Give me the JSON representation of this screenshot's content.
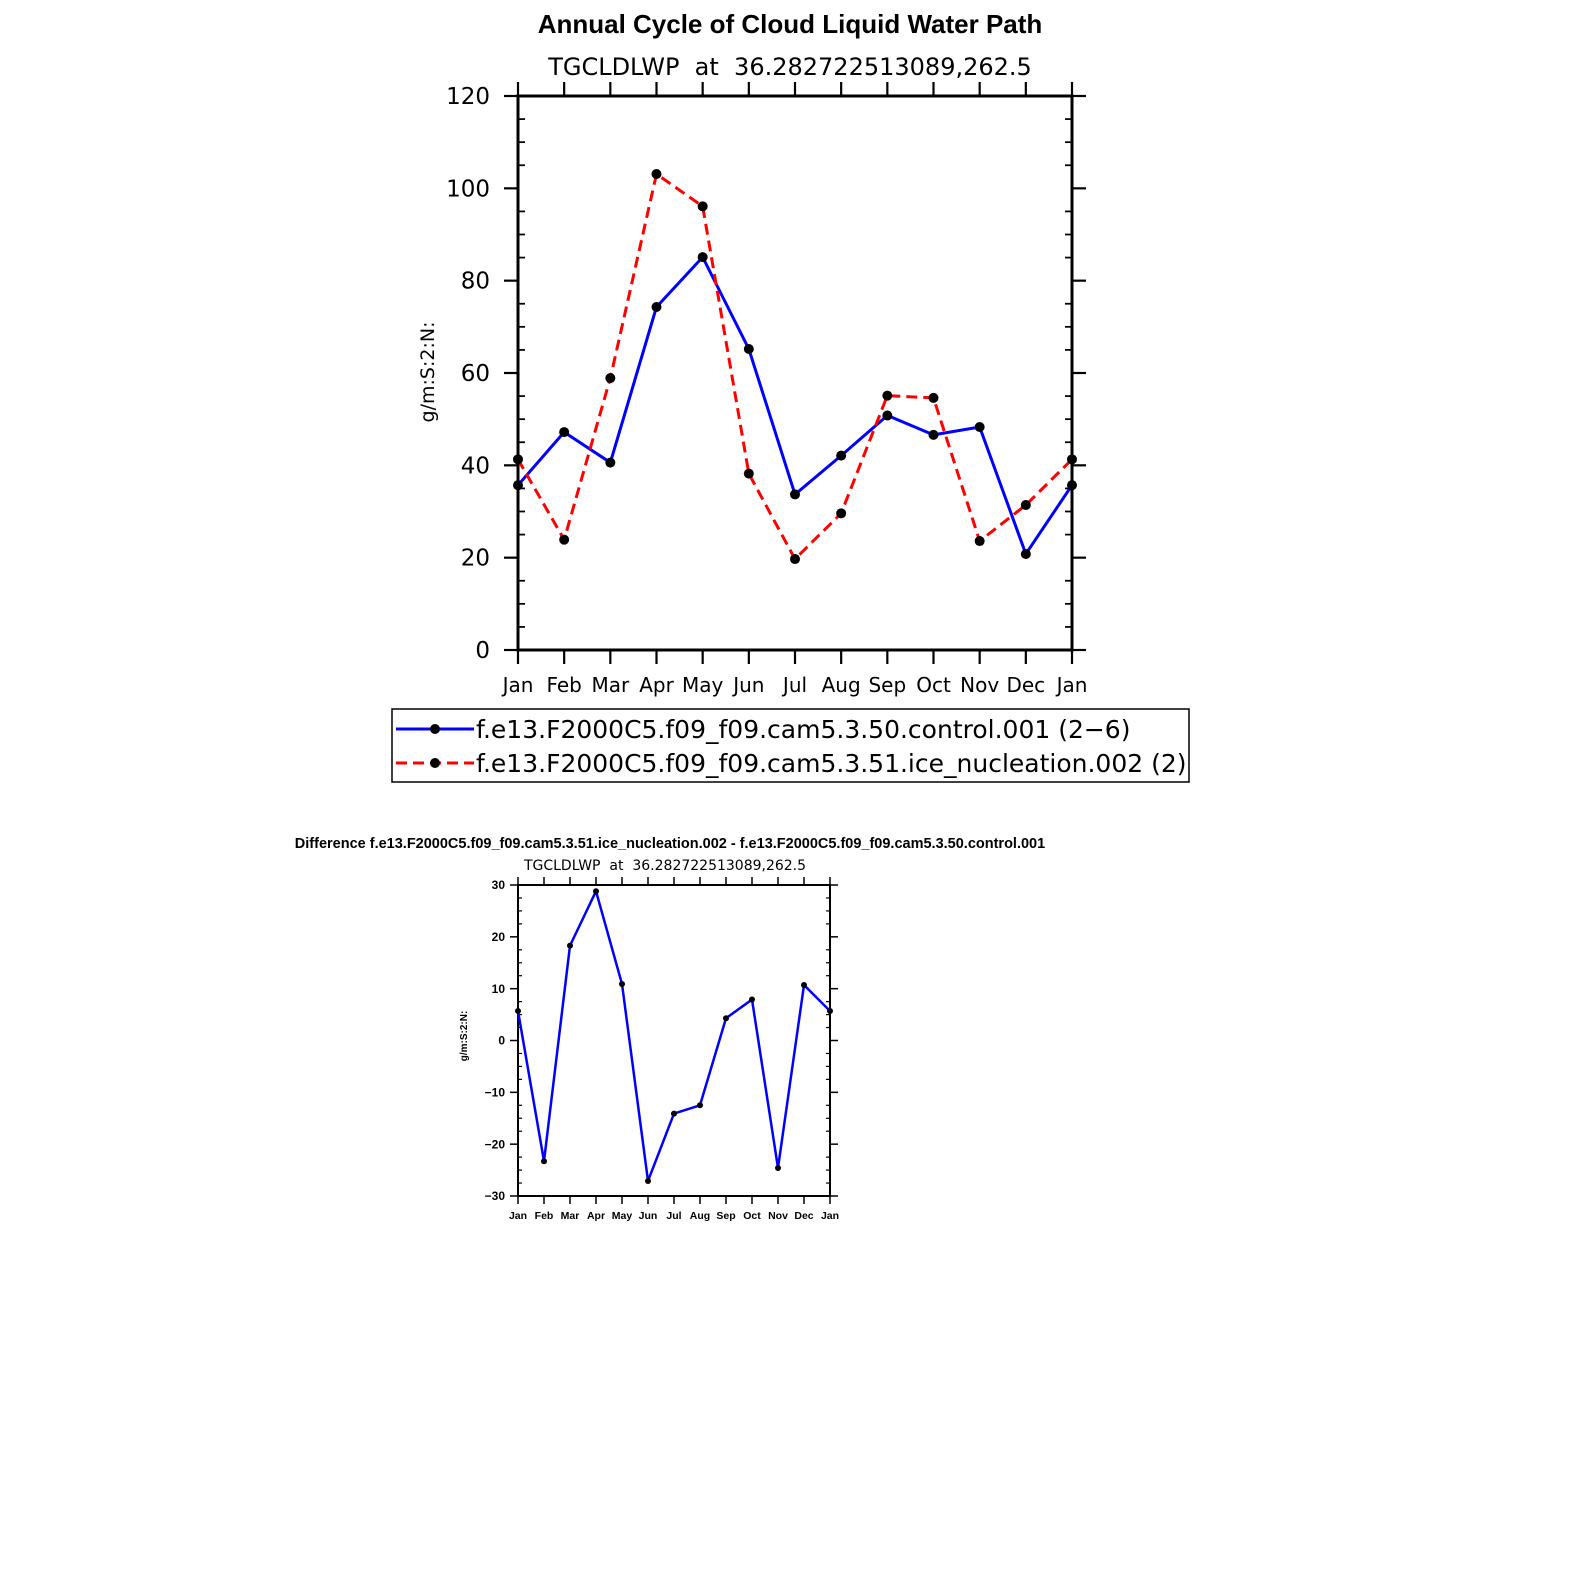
{
  "chart_data": [
    {
      "type": "line",
      "title": "Annual Cycle of Cloud Liquid Water Path",
      "subtitle": "TGCLDLWP  at  36.282722513089,262.5",
      "ylabel": "g/m:S:2:N:",
      "xlabel": "",
      "ylim": [
        0,
        120
      ],
      "yticks": [
        "0",
        "20",
        "40",
        "60",
        "80",
        "100",
        "120"
      ],
      "ytick_values": [
        0,
        20,
        40,
        60,
        80,
        100,
        120
      ],
      "categories": [
        "Jan",
        "Feb",
        "Mar",
        "Apr",
        "May",
        "Jun",
        "Jul",
        "Aug",
        "Sep",
        "Oct",
        "Nov",
        "Dec",
        "Jan"
      ],
      "series": [
        {
          "name": "f.e13.F2000C5.f09_f09.cam5.3.50.control.001 (2−6)",
          "color": "#0000ff",
          "dash": "solid",
          "values": [
            35.7,
            47.2,
            40.6,
            74.3,
            85.1,
            65.2,
            33.7,
            42.1,
            50.8,
            46.6,
            48.3,
            20.8,
            35.7
          ]
        },
        {
          "name": "f.e13.F2000C5.f09_f09.cam5.3.51.ice_nucleation.002 (2)",
          "color": "#ff0000",
          "dash": "dashed",
          "values": [
            41.3,
            23.9,
            58.9,
            103.1,
            96.1,
            38.2,
            19.7,
            29.6,
            55.1,
            54.6,
            23.6,
            31.4,
            41.3
          ]
        }
      ],
      "legend": "below"
    },
    {
      "type": "line",
      "title": "Difference f.e13.F2000C5.f09_f09.cam5.3.51.ice_nucleation.002 - f.e13.F2000C5.f09_f09.cam5.3.50.control.001",
      "subtitle": "TGCLDLWP  at  36.282722513089,262.5",
      "ylabel": "g/m:S:2:N:",
      "xlabel": "",
      "ylim": [
        -30,
        30
      ],
      "yticks": [
        "−30",
        "−20",
        "−10",
        "0",
        "10",
        "20",
        "30"
      ],
      "ytick_values": [
        -30,
        -20,
        -10,
        0,
        10,
        20,
        30
      ],
      "categories": [
        "Jan",
        "Feb",
        "Mar",
        "Apr",
        "May",
        "Jun",
        "Jul",
        "Aug",
        "Sep",
        "Oct",
        "Nov",
        "Dec",
        "Jan"
      ],
      "series": [
        {
          "name": "difference",
          "color": "#0000ff",
          "dash": "solid",
          "values": [
            5.7,
            -23.3,
            18.3,
            28.8,
            10.9,
            -27.1,
            -14.1,
            -12.5,
            4.3,
            7.9,
            -24.6,
            10.7,
            5.7
          ]
        }
      ]
    }
  ]
}
